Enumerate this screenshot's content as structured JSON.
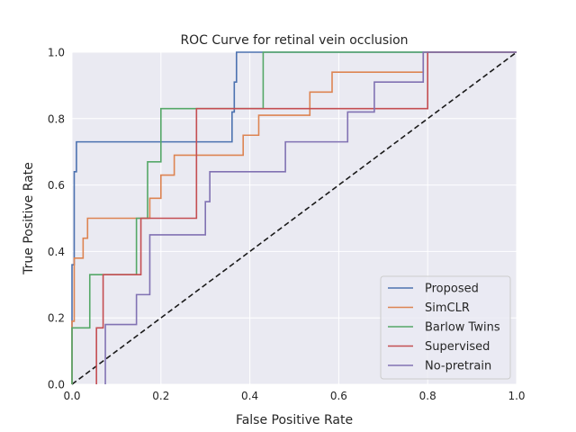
{
  "chart_data": {
    "type": "line",
    "title": "ROC Curve for retinal vein occlusion",
    "xlabel": "False Positive Rate",
    "ylabel": "True Positive Rate",
    "xlim": [
      0,
      1
    ],
    "ylim": [
      0,
      1
    ],
    "xticks": [
      "0.0",
      "0.2",
      "0.4",
      "0.6",
      "0.8",
      "1.0"
    ],
    "yticks": [
      "0.0",
      "0.2",
      "0.4",
      "0.6",
      "0.8",
      "1.0"
    ],
    "grid": true,
    "legend_position": "lower-right",
    "background_color": "#eaeaf2",
    "series": [
      {
        "name": "Proposed",
        "color": "#4c72b0",
        "x": [
          0,
          0,
          0.005,
          0.005,
          0.01,
          0.01,
          0.36,
          0.36,
          0.365,
          0.365,
          0.37,
          0.37,
          0.43,
          0.43,
          1
        ],
        "y": [
          0,
          0.36,
          0.36,
          0.64,
          0.64,
          0.73,
          0.73,
          0.82,
          0.82,
          0.91,
          0.91,
          1.0,
          1.0,
          1.0,
          1.0
        ]
      },
      {
        "name": "SimCLR",
        "color": "#dd8452",
        "x": [
          0,
          0,
          0.005,
          0.005,
          0.025,
          0.025,
          0.035,
          0.035,
          0.175,
          0.175,
          0.2,
          0.2,
          0.23,
          0.23,
          0.385,
          0.385,
          0.42,
          0.42,
          0.535,
          0.535,
          0.585,
          0.585,
          0.79,
          0.79,
          1
        ],
        "y": [
          0,
          0.19,
          0.19,
          0.38,
          0.38,
          0.44,
          0.44,
          0.5,
          0.5,
          0.56,
          0.56,
          0.63,
          0.63,
          0.69,
          0.69,
          0.75,
          0.75,
          0.81,
          0.81,
          0.88,
          0.88,
          0.94,
          0.94,
          1.0,
          1.0
        ]
      },
      {
        "name": "Barlow Twins",
        "color": "#55a868",
        "x": [
          0,
          0,
          0.04,
          0.04,
          0.145,
          0.145,
          0.17,
          0.17,
          0.2,
          0.2,
          0.43,
          0.43,
          0.79,
          0.79,
          1
        ],
        "y": [
          0,
          0.17,
          0.17,
          0.33,
          0.33,
          0.5,
          0.5,
          0.67,
          0.67,
          0.83,
          0.83,
          1.0,
          1.0,
          1.0,
          1.0
        ]
      },
      {
        "name": "Supervised",
        "color": "#c44e52",
        "x": [
          0.055,
          0.055,
          0.07,
          0.07,
          0.155,
          0.155,
          0.28,
          0.28,
          0.8,
          0.8,
          1
        ],
        "y": [
          0,
          0.17,
          0.17,
          0.33,
          0.33,
          0.5,
          0.5,
          0.83,
          0.83,
          1.0,
          1.0
        ]
      },
      {
        "name": "No-pretrain",
        "color": "#8172b3",
        "x": [
          0.075,
          0.075,
          0.145,
          0.145,
          0.175,
          0.175,
          0.3,
          0.3,
          0.31,
          0.31,
          0.48,
          0.48,
          0.62,
          0.62,
          0.68,
          0.68,
          0.79,
          0.79,
          1
        ],
        "y": [
          0,
          0.18,
          0.18,
          0.27,
          0.27,
          0.45,
          0.45,
          0.55,
          0.55,
          0.64,
          0.64,
          0.73,
          0.73,
          0.82,
          0.82,
          0.91,
          0.91,
          1.0,
          1.0
        ]
      }
    ],
    "reference_line": {
      "x": [
        0,
        1
      ],
      "y": [
        0,
        1
      ],
      "color": "#1a1a1a",
      "style": "dashed"
    }
  }
}
